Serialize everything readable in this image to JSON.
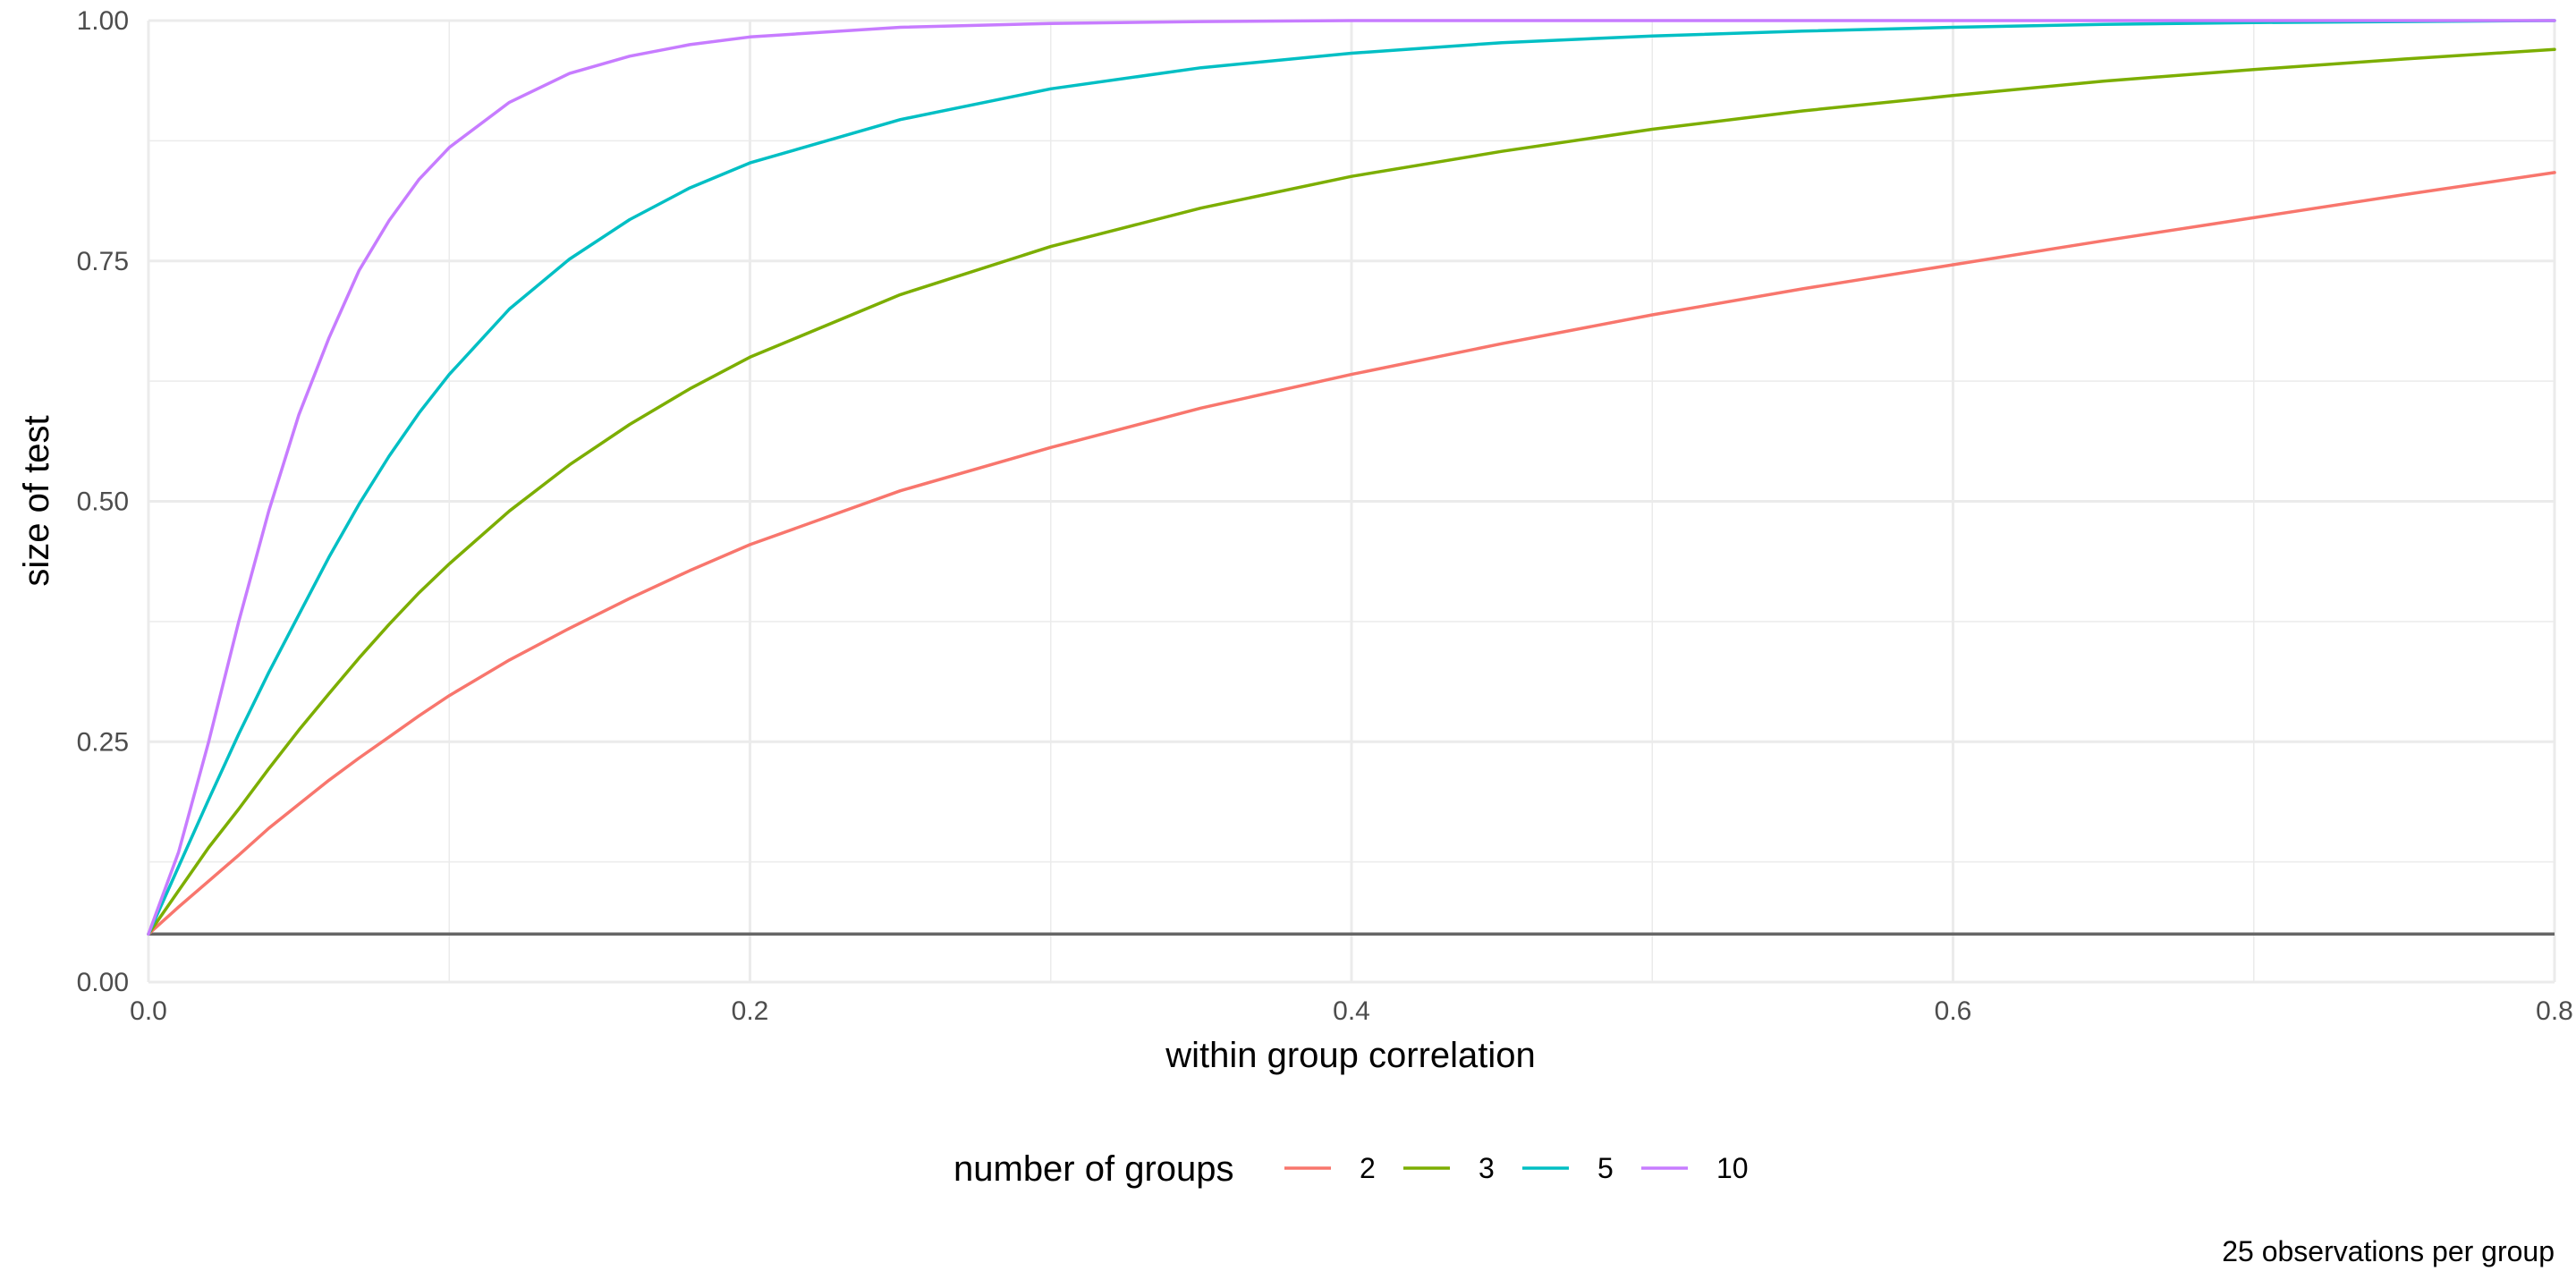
{
  "chart_data": {
    "type": "line",
    "title": "",
    "xlabel": "within group correlation",
    "ylabel": "size of test",
    "caption": "25 observations per group",
    "xlim": [
      0,
      0.8
    ],
    "ylim": [
      0,
      1
    ],
    "x_ticks": [
      "0.0",
      "0.2",
      "0.4",
      "0.6",
      "0.8"
    ],
    "y_ticks": [
      "0.00",
      "0.25",
      "0.50",
      "0.75",
      "1.00"
    ],
    "grid": true,
    "legend": {
      "title": "number of groups",
      "position": "bottom"
    },
    "reference_line": {
      "y": 0.05,
      "color": "#666666"
    },
    "x": [
      0,
      0.01,
      0.02,
      0.03,
      0.04,
      0.05,
      0.06,
      0.07,
      0.08,
      0.09,
      0.1,
      0.12,
      0.14,
      0.16,
      0.18,
      0.2,
      0.25,
      0.3,
      0.35,
      0.4,
      0.45,
      0.5,
      0.55,
      0.6,
      0.65,
      0.7,
      0.75,
      0.8
    ],
    "series": [
      {
        "name": "2",
        "color": "#F8766D",
        "values": [
          0.05,
          0.078,
          0.105,
          0.132,
          0.16,
          0.185,
          0.21,
          0.233,
          0.255,
          0.277,
          0.298,
          0.335,
          0.368,
          0.399,
          0.428,
          0.455,
          0.511,
          0.556,
          0.597,
          0.632,
          0.664,
          0.694,
          0.721,
          0.746,
          0.771,
          0.795,
          0.819,
          0.842
        ]
      },
      {
        "name": "3",
        "color": "#7CAE00",
        "values": [
          0.05,
          0.095,
          0.14,
          0.18,
          0.222,
          0.262,
          0.3,
          0.337,
          0.372,
          0.405,
          0.435,
          0.49,
          0.538,
          0.58,
          0.617,
          0.65,
          0.715,
          0.765,
          0.805,
          0.838,
          0.864,
          0.887,
          0.906,
          0.922,
          0.937,
          0.949,
          0.96,
          0.97
        ]
      },
      {
        "name": "5",
        "color": "#00BFC4",
        "values": [
          0.05,
          0.12,
          0.19,
          0.258,
          0.322,
          0.382,
          0.442,
          0.497,
          0.547,
          0.592,
          0.632,
          0.7,
          0.752,
          0.793,
          0.826,
          0.852,
          0.897,
          0.929,
          0.951,
          0.966,
          0.977,
          0.984,
          0.989,
          0.993,
          0.996,
          0.998,
          0.999,
          1.0
        ]
      },
      {
        "name": "10",
        "color": "#C77CFF",
        "values": [
          0.05,
          0.135,
          0.25,
          0.375,
          0.49,
          0.59,
          0.67,
          0.74,
          0.792,
          0.835,
          0.868,
          0.915,
          0.945,
          0.963,
          0.975,
          0.983,
          0.993,
          0.997,
          0.999,
          1.0,
          1.0,
          1.0,
          1.0,
          1.0,
          1.0,
          1.0,
          1.0,
          1.0
        ]
      }
    ]
  }
}
